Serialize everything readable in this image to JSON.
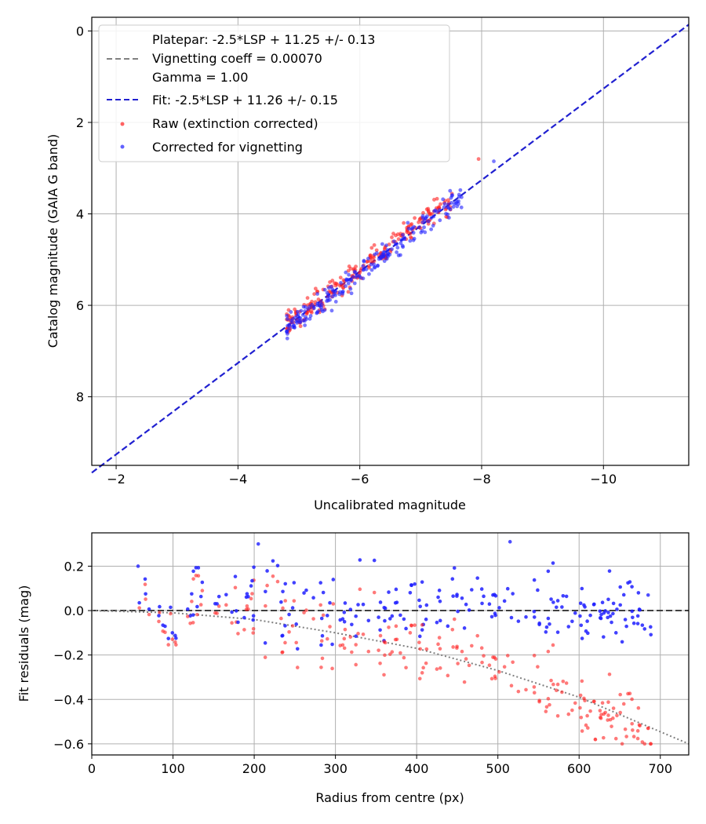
{
  "chart_data": [
    {
      "type": "scatter",
      "xlabel": "Uncalibrated magnitude",
      "ylabel": "Catalog magnitude (GAIA G band)",
      "xlim": [
        -1.6,
        -11.4
      ],
      "ylim": [
        9.5,
        -0.3
      ],
      "x_ticks": [
        -2,
        -4,
        -6,
        -8,
        -10
      ],
      "x_tick_labels": [
        "−2",
        "−4",
        "−6",
        "−8",
        "−10"
      ],
      "y_ticks": [
        0,
        2,
        4,
        6,
        8
      ],
      "y_tick_labels": [
        "0",
        "2",
        "4",
        "6",
        "8"
      ],
      "grid": true,
      "legend_position": "top-left",
      "legend": {
        "platepar_lines": [
          "Platepar: -2.5*LSP + 11.25 +/- 0.13",
          "Vignetting coeff = 0.00070",
          "Gamma = 1.00"
        ],
        "fit": "Fit: -2.5*LSP + 11.26 +/- 0.15",
        "raw": "Raw (extinction corrected)",
        "corrected": "Corrected for vignetting"
      },
      "lines": [
        {
          "name": "Platepar",
          "slope": -2.5,
          "intercept": 11.25,
          "color": "#808080",
          "style": "dashed"
        },
        {
          "name": "Fit",
          "slope": -2.5,
          "intercept": 11.26,
          "color": "#2020d0",
          "style": "dashed"
        }
      ],
      "series": [
        {
          "name": "Raw (extinction corrected)",
          "color": "#ff2020",
          "generated_from": "fit_line_with_scatter",
          "x_range": [
            -4.8,
            -8.0
          ],
          "count": 220
        },
        {
          "name": "Corrected for vignetting",
          "color": "#2020ff",
          "generated_from": "fit_line_with_scatter",
          "x_range": [
            -4.8,
            -8.2
          ],
          "count": 220
        }
      ],
      "extreme_points": [
        {
          "series": "Raw (extinction corrected)",
          "x": -7.95,
          "y": 2.8
        },
        {
          "series": "Corrected for vignetting",
          "x": -8.2,
          "y": 2.85
        }
      ]
    },
    {
      "type": "scatter",
      "xlabel": "Radius from centre (px)",
      "ylabel": "Fit residuals (mag)",
      "xlim": [
        0,
        735
      ],
      "ylim": [
        -0.65,
        0.35
      ],
      "x_ticks": [
        0,
        100,
        200,
        300,
        400,
        500,
        600,
        700
      ],
      "x_tick_labels": [
        "0",
        "100",
        "200",
        "300",
        "400",
        "500",
        "600",
        "700"
      ],
      "y_ticks": [
        0.2,
        0.0,
        -0.2,
        -0.4,
        -0.6
      ],
      "y_tick_labels": [
        "0.2",
        "0.0",
        "−0.2",
        "−0.4",
        "−0.6"
      ],
      "grid": true,
      "reference_lines": [
        {
          "name": "zero",
          "type": "horizontal",
          "y": 0.0,
          "color": "#404040",
          "style": "dashed"
        },
        {
          "name": "vignetting model",
          "type": "curve",
          "color": "#808080",
          "style": "dotted",
          "points": [
            [
              0,
              0
            ],
            [
              100,
              -0.01
            ],
            [
              200,
              -0.04
            ],
            [
              300,
              -0.1
            ],
            [
              400,
              -0.17
            ],
            [
              500,
              -0.27
            ],
            [
              600,
              -0.39
            ],
            [
              735,
              -0.6
            ]
          ]
        }
      ],
      "series": [
        {
          "name": "Raw (extinction corrected)",
          "color": "#ff2020",
          "generated_from": "residual_scatter",
          "x_range": [
            50,
            690
          ],
          "count": 220
        },
        {
          "name": "Corrected for vignetting",
          "color": "#2020ff",
          "generated_from": "residual_scatter",
          "x_range": [
            50,
            690
          ],
          "count": 220
        }
      ],
      "sample_points": [
        {
          "series": "Corrected for vignetting",
          "x": 57,
          "y": 0.2
        },
        {
          "series": "Corrected for vignetting",
          "x": 205,
          "y": 0.3
        },
        {
          "series": "Corrected for vignetting",
          "x": 515,
          "y": 0.31
        },
        {
          "series": "Raw (extinction corrected)",
          "x": 620,
          "y": -0.58
        },
        {
          "series": "Raw (extinction corrected)",
          "x": 685,
          "y": -0.53
        },
        {
          "series": "Corrected for vignetting",
          "x": 685,
          "y": 0.07
        }
      ]
    }
  ]
}
